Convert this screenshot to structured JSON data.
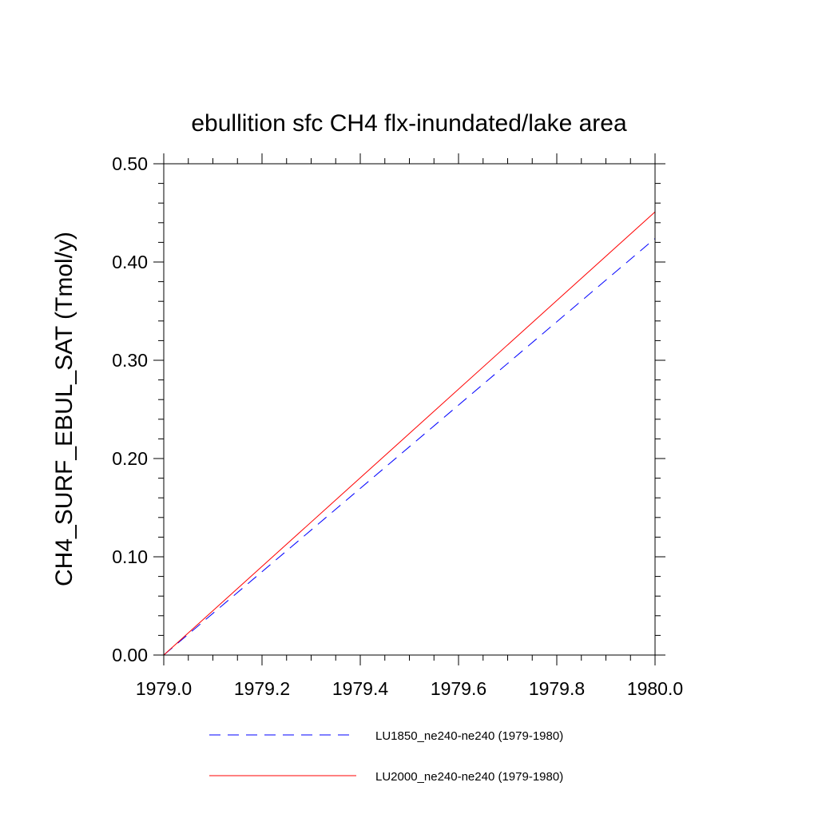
{
  "chart_data": {
    "type": "line",
    "title": "ebullition sfc CH4 flx-inundated/lake area",
    "xlabel": "",
    "ylabel": "CH4_SURF_EBUL_SAT  (Tmol/y)",
    "xlim": [
      1979.0,
      1980.0
    ],
    "ylim": [
      0.0,
      0.5
    ],
    "x_ticks": [
      1979.0,
      1979.2,
      1979.4,
      1979.6,
      1979.8,
      1980.0
    ],
    "x_tick_labels": [
      "1979.0",
      "1979.2",
      "1979.4",
      "1979.6",
      "1979.8",
      "1980.0"
    ],
    "y_ticks": [
      0.0,
      0.1,
      0.2,
      0.3,
      0.4,
      0.5
    ],
    "y_tick_labels": [
      "0.00",
      "0.10",
      "0.20",
      "0.30",
      "0.40",
      "0.50"
    ],
    "grid": false,
    "legend_position": "bottom",
    "series": [
      {
        "name": "LU1850_ne240-ne240 (1979-1980)",
        "color": "#0000ff",
        "dash": "dashed",
        "x": [
          1979.0,
          1980.0
        ],
        "y": [
          0.0,
          0.424
        ]
      },
      {
        "name": "LU2000_ne240-ne240 (1979-1980)",
        "color": "#ff0000",
        "dash": "solid",
        "x": [
          1979.0,
          1980.0
        ],
        "y": [
          0.0,
          0.451
        ]
      }
    ]
  }
}
